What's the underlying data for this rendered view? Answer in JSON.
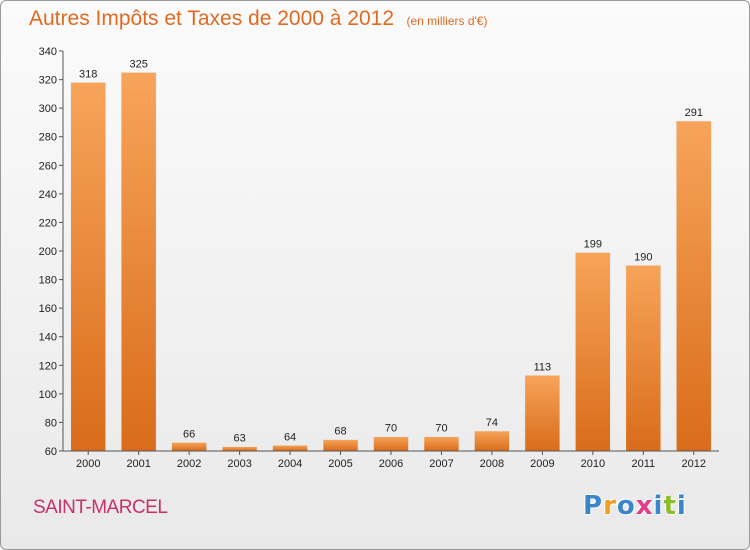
{
  "chart_data": {
    "type": "bar",
    "title": "Autres Impôts et Taxes de 2000 à 2012",
    "subtitle": "(en milliers d'€)",
    "categories": [
      "2000",
      "2001",
      "2002",
      "2003",
      "2004",
      "2005",
      "2006",
      "2007",
      "2008",
      "2009",
      "2010",
      "2011",
      "2012"
    ],
    "values": [
      318,
      325,
      66,
      63,
      64,
      68,
      70,
      70,
      74,
      113,
      199,
      190,
      291
    ],
    "value_labels": [
      "318",
      "325",
      "66",
      "63",
      "64",
      "68",
      "70",
      "70",
      "74",
      "113",
      "199",
      "190",
      "291"
    ],
    "ylim": [
      60,
      340
    ],
    "yticks": [
      "60",
      "80",
      "100",
      "120",
      "140",
      "160",
      "180",
      "200",
      "220",
      "240",
      "260",
      "280",
      "300",
      "320",
      "340"
    ],
    "grid": false,
    "bar_color": "#f0882e",
    "xlabel": "",
    "ylabel": ""
  },
  "footer": {
    "place": "SAINT-MARCEL",
    "brand_letters": [
      "P",
      "r",
      "o",
      "x",
      "i",
      "t",
      "i"
    ],
    "brand_colors": [
      "#3a86c8",
      "#f0a020",
      "#3a86c8",
      "#e23d8a",
      "#3a86c8",
      "#8bbf2a",
      "#3a86c8"
    ]
  }
}
